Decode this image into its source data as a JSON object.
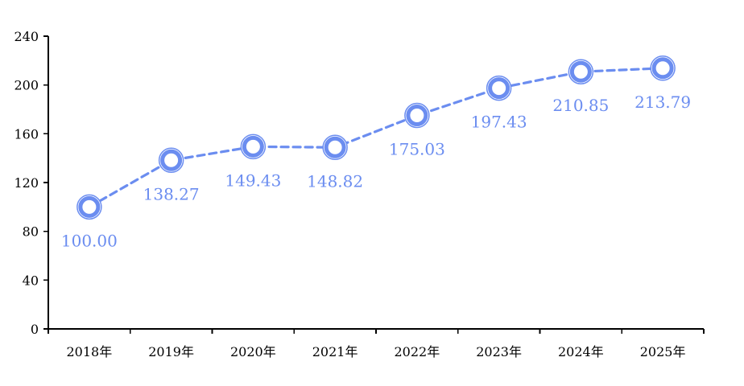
{
  "chart_data": {
    "type": "line",
    "categories": [
      "2018年",
      "2019年",
      "2020年",
      "2021年",
      "2022年",
      "2023年",
      "2024年",
      "2025年"
    ],
    "series": [
      {
        "values": [
          100.0,
          138.27,
          149.43,
          148.82,
          175.03,
          197.43,
          210.85,
          213.79
        ],
        "labels": [
          "100.00",
          "138.27",
          "149.43",
          "148.82",
          "175.03",
          "197.43",
          "210.85",
          "213.79"
        ],
        "color": "#6b8df0"
      }
    ],
    "yticks": [
      "0",
      "40",
      "80",
      "120",
      "160",
      "200",
      "240"
    ],
    "ylim": [
      0,
      240
    ],
    "line_style": "dashed",
    "marker": "ring",
    "grid": false,
    "title": "",
    "xlabel": "",
    "ylabel": ""
  }
}
